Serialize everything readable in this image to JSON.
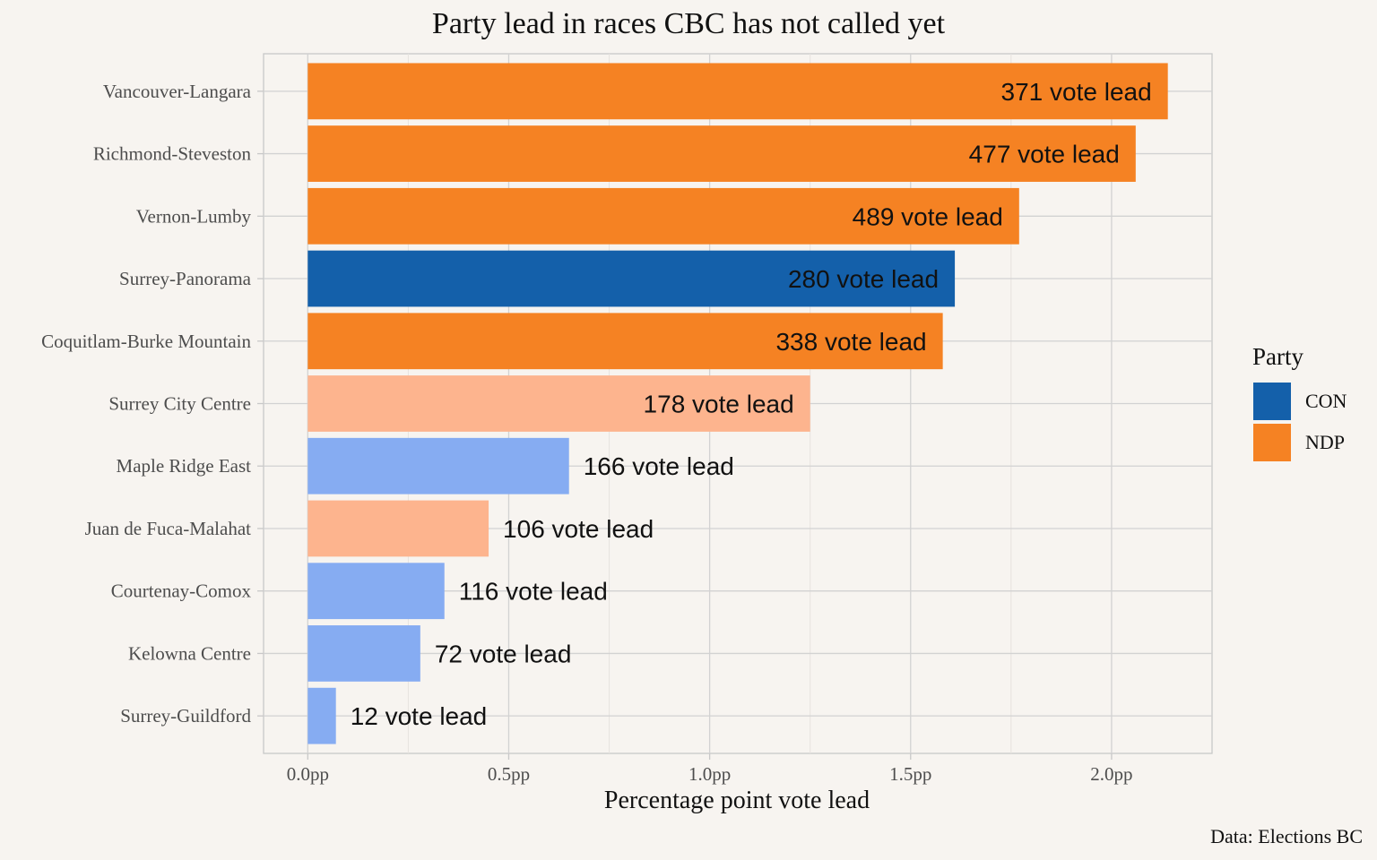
{
  "chart_data": {
    "type": "bar",
    "orientation": "horizontal",
    "title": "Party lead in races CBC has not called yet",
    "xlabel": "Percentage point vote lead",
    "ylabel": "",
    "xlim": [
      -0.11,
      2.25
    ],
    "x_ticks": [
      0.0,
      0.5,
      1.0,
      1.5,
      2.0
    ],
    "x_tick_labels": [
      "0.0pp",
      "0.5pp",
      "1.0pp",
      "1.5pp",
      "2.0pp"
    ],
    "grid": true,
    "legend_position": "right",
    "caption": "Data: Elections BC",
    "legend": {
      "title": "Party",
      "entries": [
        {
          "label": "CON",
          "color": "#1460aa"
        },
        {
          "label": "NDP",
          "color": "#f58223"
        }
      ]
    },
    "label_color_inside": "#111111",
    "bars": [
      {
        "category": "Vancouver-Langara",
        "value": 2.14,
        "party": "NDP",
        "color": "#f58223",
        "label": "371 vote lead",
        "label_inside": true
      },
      {
        "category": "Richmond-Steveston",
        "value": 2.06,
        "party": "NDP",
        "color": "#f58223",
        "label": "477 vote lead",
        "label_inside": true
      },
      {
        "category": "Vernon-Lumby",
        "value": 1.77,
        "party": "NDP",
        "color": "#f58223",
        "label": "489 vote lead",
        "label_inside": true
      },
      {
        "category": "Surrey-Panorama",
        "value": 1.61,
        "party": "CON",
        "color": "#1460aa",
        "label": "280 vote lead",
        "label_inside": true
      },
      {
        "category": "Coquitlam-Burke Mountain",
        "value": 1.58,
        "party": "NDP",
        "color": "#f58223",
        "label": "338 vote lead",
        "label_inside": true
      },
      {
        "category": "Surrey City Centre",
        "value": 1.25,
        "party": "NDP",
        "color": "#fdb48e",
        "label": "178 vote lead",
        "label_inside": true
      },
      {
        "category": "Maple Ridge East",
        "value": 0.65,
        "party": "CON",
        "color": "#86acf2",
        "label": "166 vote lead",
        "label_inside": false
      },
      {
        "category": "Juan de Fuca-Malahat",
        "value": 0.45,
        "party": "NDP",
        "color": "#fdb48e",
        "label": "106 vote lead",
        "label_inside": false
      },
      {
        "category": "Courtenay-Comox",
        "value": 0.34,
        "party": "CON",
        "color": "#86acf2",
        "label": "116 vote lead",
        "label_inside": false
      },
      {
        "category": "Kelowna Centre",
        "value": 0.28,
        "party": "CON",
        "color": "#86acf2",
        "label": "72 vote lead",
        "label_inside": false
      },
      {
        "category": "Surrey-Guildford",
        "value": 0.07,
        "party": "CON",
        "color": "#86acf2",
        "label": "12 vote lead",
        "label_inside": false
      }
    ]
  }
}
